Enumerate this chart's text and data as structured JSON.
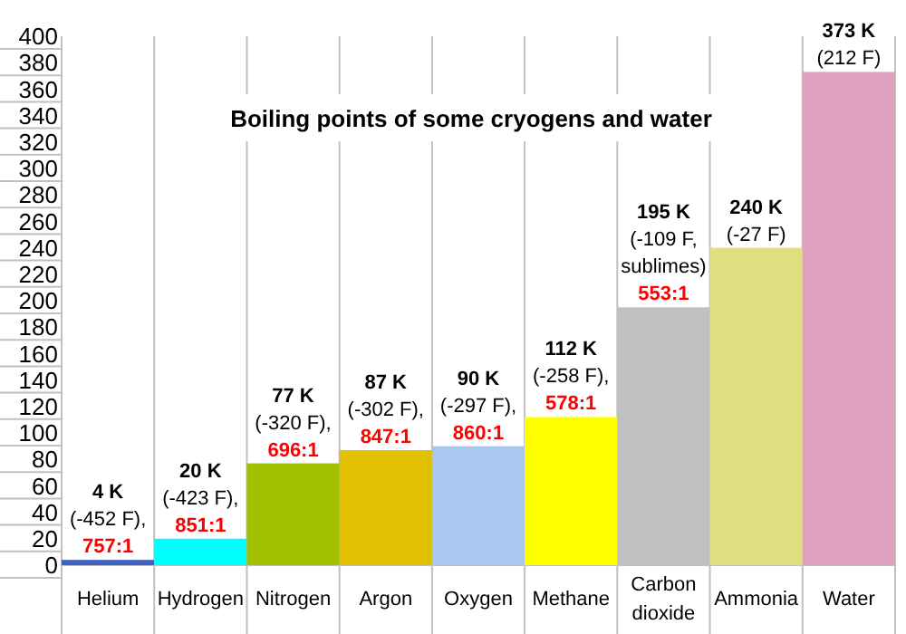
{
  "chart_data": {
    "type": "bar",
    "title": "Boiling points of some cryogens and water",
    "categories": [
      "Helium",
      "Hydrogen",
      "Nitrogen",
      "Argon",
      "Oxygen",
      "Methane",
      "Carbon dioxide",
      "Ammonia",
      "Water"
    ],
    "values": [
      4,
      20,
      77,
      87,
      90,
      112,
      195,
      240,
      373
    ],
    "colors": [
      "#4060c0",
      "#00ffff",
      "#a0c000",
      "#e0c000",
      "#a8c8f0",
      "#ffff00",
      "#c0c0c0",
      "#e0e080",
      "#e0a0c0"
    ],
    "value_labels": [
      "4 K\n(-452 F),\n757:1",
      "20 K\n(-423 F),\n851:1",
      "77 K\n(-320 F),\n696:1",
      "87 K\n(-302 F),\n847:1",
      "90 K\n(-297 F),\n860:1",
      "112 K\n(-258 F),\n578:1",
      "195 K\n(-109 F,\nsublimes)\n553:1",
      "240 K\n(-27 F)",
      "373 K\n(212 F)"
    ],
    "ylim": [
      0,
      400
    ],
    "yticks": [
      0,
      20,
      40,
      60,
      80,
      100,
      120,
      140,
      160,
      180,
      200,
      220,
      240,
      260,
      280,
      300,
      320,
      340,
      360,
      380,
      400
    ],
    "grid": "x"
  }
}
